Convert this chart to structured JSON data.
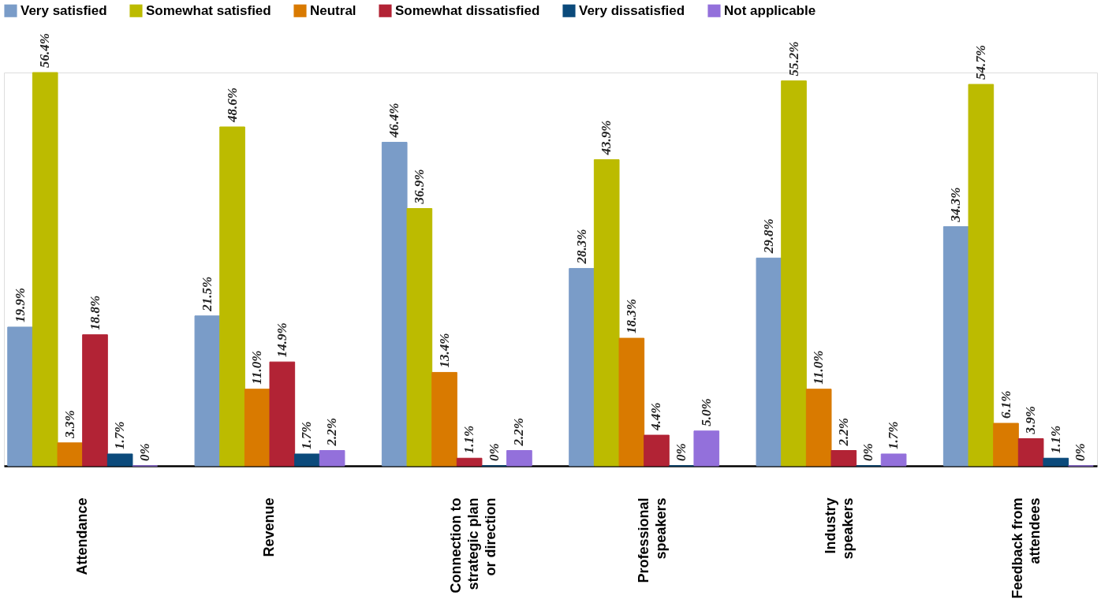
{
  "chart_data": {
    "type": "bar",
    "categories": [
      "Attendance",
      "Revenue",
      "Connection to strategic plan or direction",
      "Professional speakers",
      "Industry speakers",
      "Feedback from attendees"
    ],
    "series": [
      {
        "name": "Very satisfied",
        "color": "#7a9cc8",
        "values": [
          19.9,
          21.5,
          46.4,
          28.3,
          29.8,
          34.3
        ],
        "value_labels": [
          "19.9%",
          "21.5%",
          "46.4%",
          "28.3%",
          "29.8%",
          "34.3%"
        ]
      },
      {
        "name": "Somewhat satisfied",
        "color": "#bcbb00",
        "values": [
          56.4,
          48.6,
          36.9,
          43.9,
          55.2,
          54.7
        ],
        "value_labels": [
          "56.4%",
          "48.6%",
          "36.9%",
          "43.9%",
          "55.2%",
          "54.7%"
        ]
      },
      {
        "name": "Neutral",
        "color": "#d97a00",
        "values": [
          3.3,
          11.0,
          13.4,
          18.3,
          11.0,
          6.1
        ],
        "value_labels": [
          "3.3%",
          "11.0%",
          "13.4%",
          "18.3%",
          "11.0%",
          "6.1%"
        ]
      },
      {
        "name": "Somewhat dissatisfied",
        "color": "#b22335",
        "values": [
          18.8,
          14.9,
          1.1,
          4.4,
          2.2,
          3.9
        ],
        "value_labels": [
          "18.8%",
          "14.9%",
          "1.1%",
          "4.4%",
          "2.2%",
          "3.9%"
        ]
      },
      {
        "name": "Very dissatisfied",
        "color": "#0b4a7b",
        "values": [
          1.7,
          1.7,
          0,
          0,
          0,
          1.1
        ],
        "value_labels": [
          "1.7%",
          "1.7%",
          "0%",
          "0%",
          "0%",
          "1.1%"
        ]
      },
      {
        "name": "Not applicable",
        "color": "#9370db",
        "values": [
          0,
          2.2,
          2.2,
          5.0,
          1.7,
          0
        ],
        "value_labels": [
          "0%",
          "2.2%",
          "2.2%",
          "5.0%",
          "1.7%",
          "0%"
        ]
      }
    ],
    "legend": "top",
    "grid": false
  }
}
